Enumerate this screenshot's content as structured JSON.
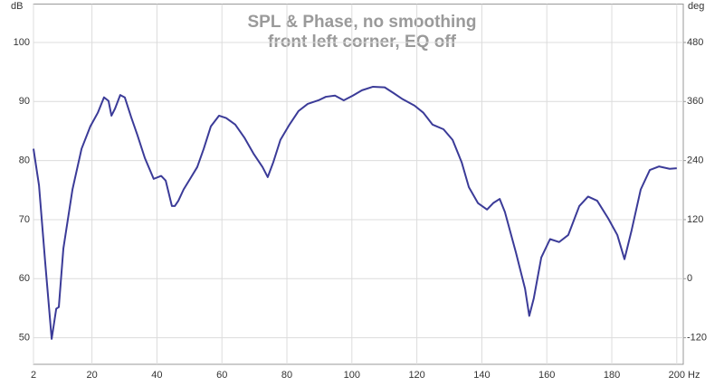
{
  "chart_data": {
    "type": "line",
    "title": "SPL & Phase, no smoothing",
    "subtitle": "front left corner, EQ off",
    "y_label": "dB",
    "y2_label": "deg",
    "x_label": "Hz",
    "x": [
      2,
      3.7,
      5.6,
      7.6,
      9.0,
      9.8,
      11.2,
      14,
      16.8,
      19.5,
      21.8,
      23.7,
      25.1,
      26,
      27.1,
      28.7,
      30.1,
      32.1,
      34,
      36.3,
      39,
      41.3,
      42.7,
      44.6,
      45.5,
      46.6,
      48.2,
      50.2,
      52.4,
      54.4,
      56.6,
      59.1,
      61.3,
      64.1,
      66.9,
      69.7,
      72.5,
      74.1,
      75.8,
      78,
      80.8,
      83.6,
      86.4,
      89.7,
      92,
      94.8,
      97.5,
      100.3,
      103.1,
      106.5,
      110.1,
      112.9,
      115.6,
      119.3,
      122,
      124.8,
      128.2,
      131,
      133.8,
      136,
      138.8,
      141.6,
      143.5,
      145.5,
      147.1,
      150.5,
      153.3,
      154.6,
      156,
      158.3,
      161,
      163.8,
      166.6,
      170,
      172.7,
      175.5,
      178.9,
      181.7,
      183.9,
      186.1,
      188.9,
      191.7,
      194.5,
      197.8,
      200
    ],
    "series": [
      {
        "name": "SPL",
        "color": "#3b3b98",
        "values": [
          82,
          75.8,
          62.8,
          49.8,
          54.9,
          55.2,
          65.1,
          75.1,
          82,
          85.8,
          88.1,
          90.7,
          90.1,
          87.6,
          88.8,
          91.1,
          90.7,
          87.3,
          84.3,
          80.4,
          76.9,
          77.4,
          76.6,
          72.3,
          72.3,
          73.2,
          75.1,
          76.9,
          78.9,
          82,
          85.8,
          87.6,
          87.2,
          86.1,
          83.9,
          81.2,
          78.9,
          77.2,
          79.7,
          83.5,
          86.1,
          88.4,
          89.6,
          90.2,
          90.8,
          91,
          90.2,
          91,
          91.9,
          92.5,
          92.4,
          91.4,
          90.4,
          89.3,
          88.1,
          86.1,
          85.3,
          83.5,
          79.7,
          75.5,
          72.8,
          71.7,
          72.8,
          73.5,
          71.3,
          64.4,
          58.3,
          53.7,
          56.7,
          63.6,
          66.7,
          66.2,
          67.4,
          72.3,
          73.9,
          73.2,
          70.2,
          67.4,
          63.3,
          68.2,
          75.1,
          78.4,
          79,
          78.6,
          78.7
        ]
      }
    ],
    "xlim": [
      2,
      202
    ],
    "xticks": [
      2,
      20,
      40,
      60,
      80,
      100,
      120,
      140,
      160,
      180,
      200
    ],
    "ylim": [
      45.5,
      106.5
    ],
    "yticks": [
      50,
      60,
      70,
      80,
      90,
      100
    ],
    "y2lim": [
      -174,
      558
    ],
    "y2ticks": [
      -120,
      0,
      120,
      240,
      360,
      480
    ],
    "grid": true
  }
}
